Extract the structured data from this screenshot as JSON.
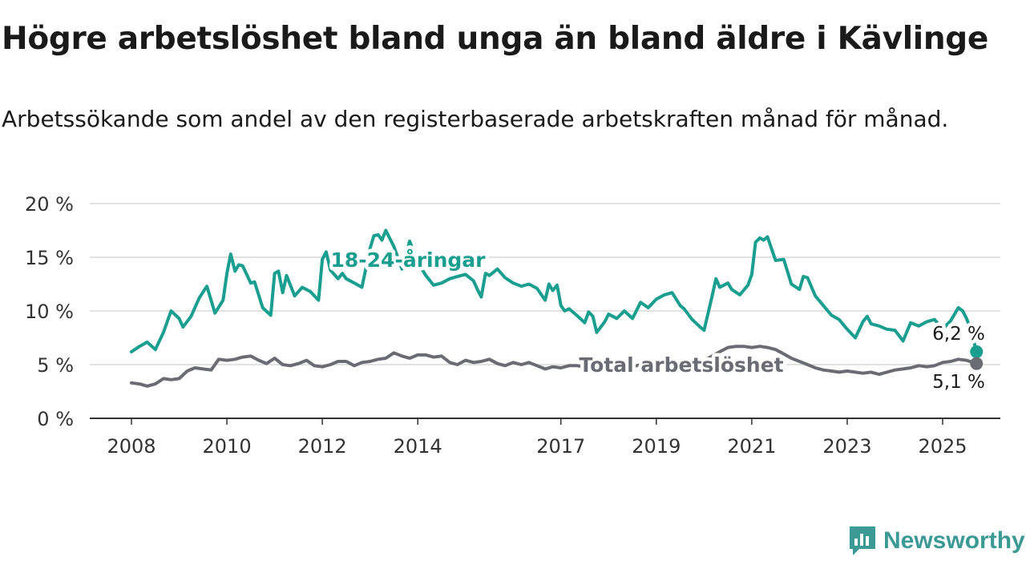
{
  "header": {
    "title": "Högre arbetslöshet bland unga än bland äldre i Kävlinge",
    "subtitle": "Arbetssökande som andel av den registerbaserade arbetskraften månad för månad."
  },
  "brand": {
    "name": "Newsworthy",
    "color": "#3c9a94",
    "icon": "newsworthy-logo-icon"
  },
  "chart_data": {
    "type": "line",
    "ylim": [
      0,
      20
    ],
    "yticks": [
      0,
      5,
      10,
      15,
      20
    ],
    "ytick_labels": [
      "0 %",
      "5 %",
      "10 %",
      "15 %",
      "20 %"
    ],
    "xticks": [
      2008,
      2010,
      2012,
      2014,
      2017,
      2019,
      2021,
      2023,
      2025
    ],
    "xtick_labels": [
      "2008",
      "2010",
      "2012",
      "2014",
      "2017",
      "2019",
      "2021",
      "2023",
      "2025"
    ],
    "xlim": [
      2007.7,
      2026.2
    ],
    "grid": true,
    "series": [
      {
        "name": "18-24-åringar",
        "color": "#1a9e8f",
        "end_label": "6,2 %",
        "points": [
          [
            2008.0,
            6.2
          ],
          [
            2008.17,
            6.7
          ],
          [
            2008.33,
            7.1
          ],
          [
            2008.5,
            6.4
          ],
          [
            2008.67,
            8.0
          ],
          [
            2008.83,
            10.0
          ],
          [
            2009.0,
            9.3
          ],
          [
            2009.08,
            8.5
          ],
          [
            2009.25,
            9.5
          ],
          [
            2009.42,
            11.2
          ],
          [
            2009.58,
            12.3
          ],
          [
            2009.75,
            9.8
          ],
          [
            2009.92,
            11.0
          ],
          [
            2010.0,
            13.5
          ],
          [
            2010.08,
            15.3
          ],
          [
            2010.17,
            13.7
          ],
          [
            2010.25,
            14.3
          ],
          [
            2010.33,
            14.2
          ],
          [
            2010.5,
            12.6
          ],
          [
            2010.58,
            12.7
          ],
          [
            2010.75,
            10.3
          ],
          [
            2010.92,
            9.6
          ],
          [
            2011.0,
            13.5
          ],
          [
            2011.08,
            13.7
          ],
          [
            2011.17,
            11.7
          ],
          [
            2011.25,
            13.3
          ],
          [
            2011.42,
            11.4
          ],
          [
            2011.58,
            12.2
          ],
          [
            2011.75,
            11.8
          ],
          [
            2011.92,
            11.0
          ],
          [
            2012.0,
            14.8
          ],
          [
            2012.08,
            15.5
          ],
          [
            2012.17,
            13.8
          ],
          [
            2012.33,
            13.0
          ],
          [
            2012.42,
            13.5
          ],
          [
            2012.5,
            13.0
          ],
          [
            2012.67,
            12.6
          ],
          [
            2012.83,
            12.2
          ],
          [
            2013.0,
            15.8
          ],
          [
            2013.08,
            17.0
          ],
          [
            2013.17,
            17.1
          ],
          [
            2013.25,
            16.6
          ],
          [
            2013.33,
            17.5
          ],
          [
            2013.42,
            16.7
          ],
          [
            2013.5,
            16.0
          ],
          [
            2013.67,
            13.9
          ],
          [
            2013.83,
            16.5
          ],
          [
            2014.0,
            14.5
          ],
          [
            2014.17,
            13.3
          ],
          [
            2014.33,
            12.4
          ],
          [
            2014.5,
            12.6
          ],
          [
            2014.67,
            13.0
          ],
          [
            2014.83,
            13.2
          ],
          [
            2015.0,
            13.4
          ],
          [
            2015.17,
            12.8
          ],
          [
            2015.25,
            12.0
          ],
          [
            2015.33,
            11.3
          ],
          [
            2015.42,
            13.5
          ],
          [
            2015.5,
            13.3
          ],
          [
            2015.67,
            13.9
          ],
          [
            2015.83,
            13.1
          ],
          [
            2016.0,
            12.6
          ],
          [
            2016.17,
            12.3
          ],
          [
            2016.33,
            12.5
          ],
          [
            2016.5,
            12.1
          ],
          [
            2016.67,
            11.0
          ],
          [
            2016.75,
            12.5
          ],
          [
            2016.83,
            11.9
          ],
          [
            2016.92,
            12.4
          ],
          [
            2017.0,
            10.5
          ],
          [
            2017.08,
            10.0
          ],
          [
            2017.17,
            10.2
          ],
          [
            2017.33,
            9.6
          ],
          [
            2017.5,
            8.9
          ],
          [
            2017.58,
            9.9
          ],
          [
            2017.67,
            9.5
          ],
          [
            2017.75,
            8.0
          ],
          [
            2017.92,
            9.0
          ],
          [
            2018.0,
            9.7
          ],
          [
            2018.17,
            9.3
          ],
          [
            2018.33,
            10.0
          ],
          [
            2018.5,
            9.3
          ],
          [
            2018.67,
            10.8
          ],
          [
            2018.83,
            10.3
          ],
          [
            2019.0,
            11.1
          ],
          [
            2019.17,
            11.5
          ],
          [
            2019.33,
            11.7
          ],
          [
            2019.5,
            10.5
          ],
          [
            2019.58,
            10.2
          ],
          [
            2019.75,
            9.2
          ],
          [
            2019.92,
            8.5
          ],
          [
            2020.0,
            8.2
          ],
          [
            2020.17,
            11.4
          ],
          [
            2020.25,
            13.0
          ],
          [
            2020.33,
            12.2
          ],
          [
            2020.5,
            12.6
          ],
          [
            2020.58,
            12.0
          ],
          [
            2020.75,
            11.5
          ],
          [
            2020.92,
            12.4
          ],
          [
            2021.0,
            13.4
          ],
          [
            2021.08,
            16.4
          ],
          [
            2021.17,
            16.8
          ],
          [
            2021.25,
            16.6
          ],
          [
            2021.33,
            16.9
          ],
          [
            2021.5,
            14.7
          ],
          [
            2021.67,
            14.8
          ],
          [
            2021.83,
            12.5
          ],
          [
            2022.0,
            12.0
          ],
          [
            2022.08,
            13.2
          ],
          [
            2022.17,
            13.1
          ],
          [
            2022.33,
            11.4
          ],
          [
            2022.5,
            10.5
          ],
          [
            2022.67,
            9.6
          ],
          [
            2022.83,
            9.2
          ],
          [
            2023.0,
            8.3
          ],
          [
            2023.17,
            7.5
          ],
          [
            2023.33,
            9.0
          ],
          [
            2023.42,
            9.5
          ],
          [
            2023.5,
            8.8
          ],
          [
            2023.67,
            8.6
          ],
          [
            2023.83,
            8.3
          ],
          [
            2024.0,
            8.2
          ],
          [
            2024.17,
            7.2
          ],
          [
            2024.33,
            8.9
          ],
          [
            2024.5,
            8.6
          ],
          [
            2024.67,
            9.0
          ],
          [
            2024.83,
            9.2
          ],
          [
            2025.0,
            8.3
          ],
          [
            2025.17,
            9.1
          ],
          [
            2025.33,
            10.3
          ],
          [
            2025.42,
            10.0
          ],
          [
            2025.5,
            9.3
          ],
          [
            2025.58,
            8.4
          ],
          [
            2025.71,
            6.2
          ]
        ]
      },
      {
        "name": "Total arbetslöshet",
        "color": "#6b6b73",
        "end_label": "5,1 %",
        "points": [
          [
            2008.0,
            3.3
          ],
          [
            2008.17,
            3.2
          ],
          [
            2008.33,
            3.0
          ],
          [
            2008.5,
            3.2
          ],
          [
            2008.67,
            3.7
          ],
          [
            2008.83,
            3.6
          ],
          [
            2009.0,
            3.7
          ],
          [
            2009.17,
            4.4
          ],
          [
            2009.33,
            4.7
          ],
          [
            2009.5,
            4.6
          ],
          [
            2009.67,
            4.5
          ],
          [
            2009.83,
            5.5
          ],
          [
            2010.0,
            5.4
          ],
          [
            2010.17,
            5.5
          ],
          [
            2010.33,
            5.7
          ],
          [
            2010.5,
            5.8
          ],
          [
            2010.67,
            5.4
          ],
          [
            2010.83,
            5.1
          ],
          [
            2011.0,
            5.6
          ],
          [
            2011.17,
            5.0
          ],
          [
            2011.33,
            4.9
          ],
          [
            2011.5,
            5.1
          ],
          [
            2011.67,
            5.4
          ],
          [
            2011.83,
            4.9
          ],
          [
            2012.0,
            4.8
          ],
          [
            2012.17,
            5.0
          ],
          [
            2012.33,
            5.3
          ],
          [
            2012.5,
            5.3
          ],
          [
            2012.67,
            4.9
          ],
          [
            2012.83,
            5.2
          ],
          [
            2013.0,
            5.3
          ],
          [
            2013.17,
            5.5
          ],
          [
            2013.33,
            5.6
          ],
          [
            2013.5,
            6.1
          ],
          [
            2013.67,
            5.8
          ],
          [
            2013.83,
            5.6
          ],
          [
            2014.0,
            5.9
          ],
          [
            2014.17,
            5.9
          ],
          [
            2014.33,
            5.7
          ],
          [
            2014.5,
            5.8
          ],
          [
            2014.67,
            5.2
          ],
          [
            2014.83,
            5.0
          ],
          [
            2015.0,
            5.4
          ],
          [
            2015.17,
            5.2
          ],
          [
            2015.33,
            5.3
          ],
          [
            2015.5,
            5.5
          ],
          [
            2015.67,
            5.1
          ],
          [
            2015.83,
            4.9
          ],
          [
            2016.0,
            5.2
          ],
          [
            2016.17,
            5.0
          ],
          [
            2016.33,
            5.2
          ],
          [
            2016.5,
            4.9
          ],
          [
            2016.67,
            4.6
          ],
          [
            2016.83,
            4.8
          ],
          [
            2017.0,
            4.7
          ],
          [
            2017.17,
            4.9
          ],
          [
            2017.33,
            4.9
          ],
          [
            2017.5,
            4.8
          ],
          [
            2017.67,
            4.6
          ],
          [
            2017.83,
            4.7
          ],
          [
            2018.0,
            4.8
          ],
          [
            2018.17,
            4.7
          ],
          [
            2018.33,
            4.9
          ],
          [
            2018.5,
            4.8
          ],
          [
            2018.67,
            5.0
          ],
          [
            2018.83,
            5.0
          ],
          [
            2019.0,
            4.9
          ],
          [
            2019.17,
            5.0
          ],
          [
            2019.33,
            5.1
          ],
          [
            2019.5,
            5.1
          ],
          [
            2019.67,
            5.2
          ],
          [
            2019.83,
            5.3
          ],
          [
            2020.0,
            5.4
          ],
          [
            2020.17,
            5.8
          ],
          [
            2020.33,
            6.2
          ],
          [
            2020.5,
            6.6
          ],
          [
            2020.67,
            6.7
          ],
          [
            2020.83,
            6.7
          ],
          [
            2021.0,
            6.6
          ],
          [
            2021.17,
            6.7
          ],
          [
            2021.33,
            6.6
          ],
          [
            2021.5,
            6.4
          ],
          [
            2021.67,
            6.0
          ],
          [
            2021.83,
            5.6
          ],
          [
            2022.0,
            5.3
          ],
          [
            2022.17,
            5.0
          ],
          [
            2022.33,
            4.7
          ],
          [
            2022.5,
            4.5
          ],
          [
            2022.67,
            4.4
          ],
          [
            2022.83,
            4.3
          ],
          [
            2023.0,
            4.4
          ],
          [
            2023.17,
            4.3
          ],
          [
            2023.33,
            4.2
          ],
          [
            2023.5,
            4.3
          ],
          [
            2023.67,
            4.1
          ],
          [
            2023.83,
            4.3
          ],
          [
            2024.0,
            4.5
          ],
          [
            2024.17,
            4.6
          ],
          [
            2024.33,
            4.7
          ],
          [
            2024.5,
            4.9
          ],
          [
            2024.67,
            4.8
          ],
          [
            2024.83,
            4.9
          ],
          [
            2025.0,
            5.2
          ],
          [
            2025.17,
            5.3
          ],
          [
            2025.33,
            5.5
          ],
          [
            2025.5,
            5.4
          ],
          [
            2025.71,
            5.1
          ]
        ]
      }
    ]
  }
}
